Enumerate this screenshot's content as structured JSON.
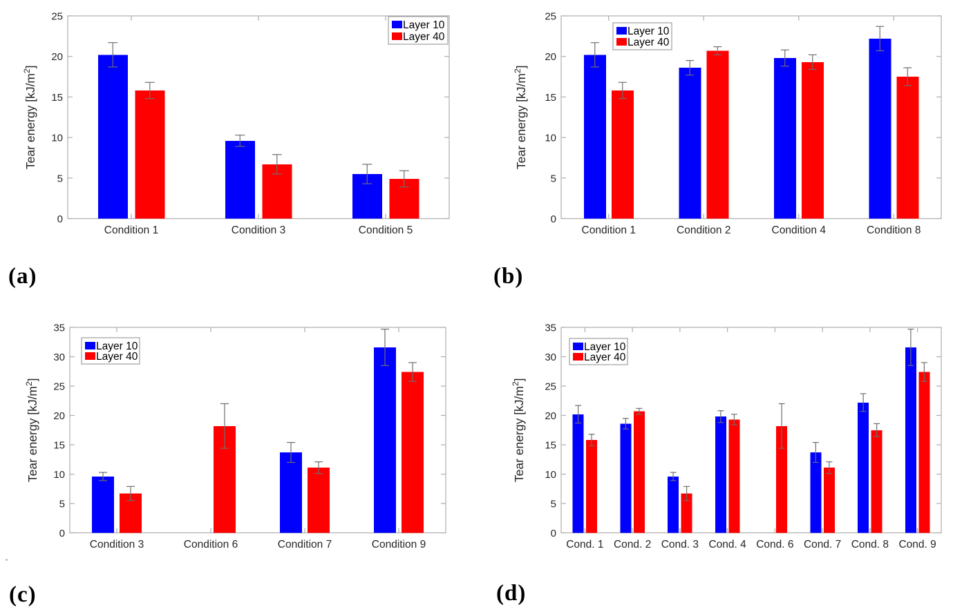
{
  "figure": {
    "background": "#ffffff",
    "palette": {
      "layer10_blue": "#0000ff",
      "layer40_red": "#ff0000",
      "axis_box": "#aeaeae",
      "tick_label": "#262626",
      "error_bar": "#6e6e6e",
      "legend_border": "#9f9f9f",
      "legend_fill": "#ffffff",
      "legend_text": "#000000"
    },
    "panels": [
      {
        "id": "a",
        "label": "(a)"
      },
      {
        "id": "b",
        "label": "(b)"
      },
      {
        "id": "c",
        "label": "(c)"
      },
      {
        "id": "d",
        "label": "(d)"
      }
    ]
  },
  "chart_data": [
    {
      "type": "bar",
      "panel": "a",
      "title": "",
      "xlabel": "",
      "ylabel": "Tear energy [kJ/m2]",
      "ylabel_parts": [
        {
          "t": "Tear energy [kJ/m"
        },
        {
          "t": "2",
          "sup": true
        },
        {
          "t": "]"
        }
      ],
      "ylim": [
        0,
        25
      ],
      "yticks": [
        0,
        5,
        10,
        15,
        20,
        25
      ],
      "grid": false,
      "legend": {
        "position": "top-right",
        "entries": [
          "Layer 10",
          "Layer 40"
        ]
      },
      "categories": [
        "Condition 1",
        "Condition 3",
        "Condition 5"
      ],
      "series": [
        {
          "name": "Layer 10",
          "color": "#0000ff",
          "values": [
            20.2,
            9.6,
            5.5
          ],
          "errors": [
            1.5,
            0.7,
            1.2
          ]
        },
        {
          "name": "Layer 40",
          "color": "#ff0000",
          "values": [
            15.8,
            6.7,
            4.9
          ],
          "errors": [
            1.0,
            1.2,
            1.0
          ]
        }
      ]
    },
    {
      "type": "bar",
      "panel": "b",
      "title": "",
      "xlabel": "",
      "ylabel": "Tear energy [kJ/m2]",
      "ylabel_parts": [
        {
          "t": "Tear energy [kJ/m"
        },
        {
          "t": "2",
          "sup": true
        },
        {
          "t": "]"
        }
      ],
      "ylim": [
        0,
        25
      ],
      "yticks": [
        0,
        5,
        10,
        15,
        20,
        25
      ],
      "grid": false,
      "legend": {
        "position": "top-left",
        "entries": [
          "Layer 10",
          "Layer 40"
        ]
      },
      "categories": [
        "Condition 1",
        "Condition 2",
        "Condition 4",
        "Condition 8"
      ],
      "series": [
        {
          "name": "Layer 10",
          "color": "#0000ff",
          "values": [
            20.2,
            18.6,
            19.8,
            22.2
          ],
          "errors": [
            1.5,
            0.9,
            1.0,
            1.5
          ]
        },
        {
          "name": "Layer 40",
          "color": "#ff0000",
          "values": [
            15.8,
            20.7,
            19.3,
            17.5
          ],
          "errors": [
            1.0,
            0.5,
            0.9,
            1.1
          ]
        }
      ]
    },
    {
      "type": "bar",
      "panel": "c",
      "title": "",
      "xlabel": "",
      "ylabel": "Tear energy [kJ/m2]",
      "ylabel_parts": [
        {
          "t": "Tear energy [kJ/m"
        },
        {
          "t": "2",
          "sup": true
        },
        {
          "t": "]"
        }
      ],
      "ylim": [
        0,
        35
      ],
      "yticks": [
        0,
        5,
        10,
        15,
        20,
        25,
        30,
        35
      ],
      "grid": false,
      "legend": {
        "position": "top-left",
        "entries": [
          "Layer 10",
          "Layer 40"
        ]
      },
      "categories": [
        "Condition 3",
        "Condition 6",
        "Condition 7",
        "Condition 9"
      ],
      "series": [
        {
          "name": "Layer 10",
          "color": "#0000ff",
          "values": [
            9.6,
            null,
            13.7,
            31.6
          ],
          "errors": [
            0.7,
            null,
            1.7,
            3.1
          ]
        },
        {
          "name": "Layer 40",
          "color": "#ff0000",
          "values": [
            6.7,
            18.2,
            11.1,
            27.4
          ],
          "errors": [
            1.2,
            3.8,
            1.0,
            1.6
          ]
        }
      ]
    },
    {
      "type": "bar",
      "panel": "d",
      "title": "",
      "xlabel": "",
      "ylabel": "Tear energy [kJ/m2]",
      "ylabel_parts": [
        {
          "t": "Tear energy [kJ/m"
        },
        {
          "t": "2",
          "sup": true
        },
        {
          "t": "]"
        }
      ],
      "ylim": [
        0,
        35
      ],
      "yticks": [
        0,
        5,
        10,
        15,
        20,
        25,
        30,
        35
      ],
      "grid": false,
      "legend": {
        "position": "top-left",
        "entries": [
          "Layer 10",
          "Layer 40"
        ]
      },
      "categories": [
        "Cond. 1",
        "Cond. 2",
        "Cond. 3",
        "Cond. 4",
        "Cond. 6",
        "Cond. 7",
        "Cond. 8",
        "Cond. 9"
      ],
      "series": [
        {
          "name": "Layer 10",
          "color": "#0000ff",
          "values": [
            20.2,
            18.6,
            9.6,
            19.8,
            null,
            13.7,
            22.2,
            31.6
          ],
          "errors": [
            1.5,
            0.9,
            0.7,
            1.0,
            null,
            1.7,
            1.5,
            3.1
          ]
        },
        {
          "name": "Layer 40",
          "color": "#ff0000",
          "values": [
            15.8,
            20.7,
            6.7,
            19.3,
            18.2,
            11.1,
            17.5,
            27.4
          ],
          "errors": [
            1.0,
            0.5,
            1.2,
            0.9,
            3.8,
            1.0,
            1.1,
            1.6
          ]
        }
      ]
    }
  ]
}
